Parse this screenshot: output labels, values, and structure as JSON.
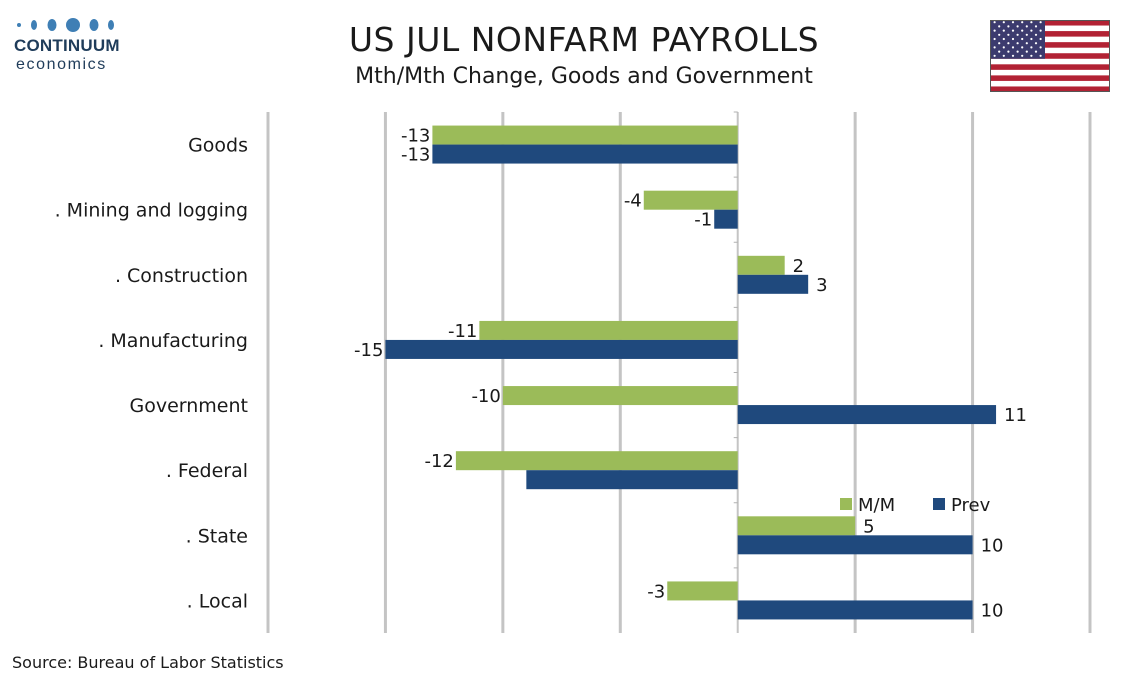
{
  "brand": {
    "name": "CONTINUUM",
    "sub": "economics"
  },
  "header": {
    "title": "US JUL NONFARM PAYROLLS",
    "subtitle": "Mth/Mth Change, Goods and Government"
  },
  "flag_icon": "us-flag-icon",
  "source": "Source: Bureau of Labor Statistics",
  "chart_data": {
    "type": "bar",
    "orientation": "horizontal",
    "categories": [
      "Goods",
      ". Mining and logging",
      ". Construction",
      ". Manufacturing",
      "Government",
      ". Federal",
      ". State",
      ". Local"
    ],
    "series": [
      {
        "name": "M/M",
        "color": "#9bbb59",
        "values": [
          -13,
          -4,
          2,
          -11,
          -10,
          -12,
          5,
          -3
        ],
        "labels": [
          "-13",
          "-4",
          "2",
          "-11",
          "-10",
          "-12",
          "5",
          "-3"
        ]
      },
      {
        "name": "Prev",
        "color": "#1f497d",
        "values": [
          -13,
          -1,
          3,
          -15,
          11,
          -9,
          10,
          10
        ],
        "labels": [
          "-13",
          "-1",
          "3",
          "-15",
          "11",
          "",
          "10",
          "10"
        ]
      }
    ],
    "xlim": [
      -20,
      15
    ],
    "grid": true,
    "legend": "inside-lower-right"
  }
}
